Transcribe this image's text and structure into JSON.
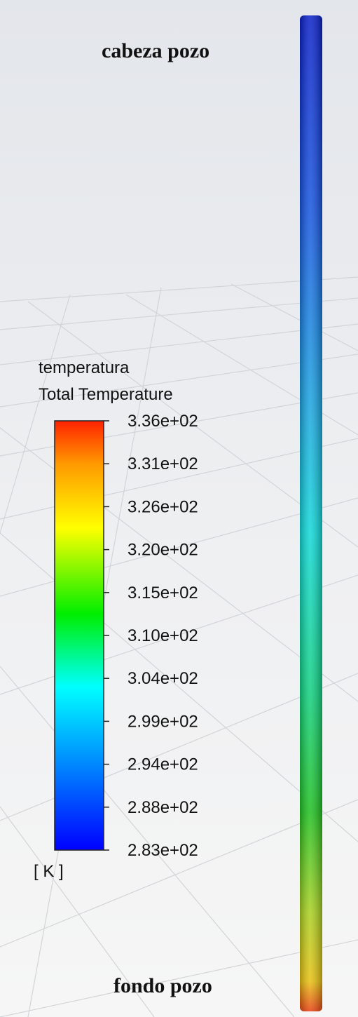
{
  "labels": {
    "top": "cabeza pozo",
    "bottom": "fondo pozo"
  },
  "legend": {
    "title": "temperatura",
    "variable": "Total Temperature",
    "ticks": [
      "3.36e+02",
      "3.31e+02",
      "3.26e+02",
      "3.20e+02",
      "3.15e+02",
      "3.10e+02",
      "3.04e+02",
      "2.99e+02",
      "2.94e+02",
      "2.88e+02",
      "2.83e+02"
    ],
    "unit": "[ K ]"
  }
}
